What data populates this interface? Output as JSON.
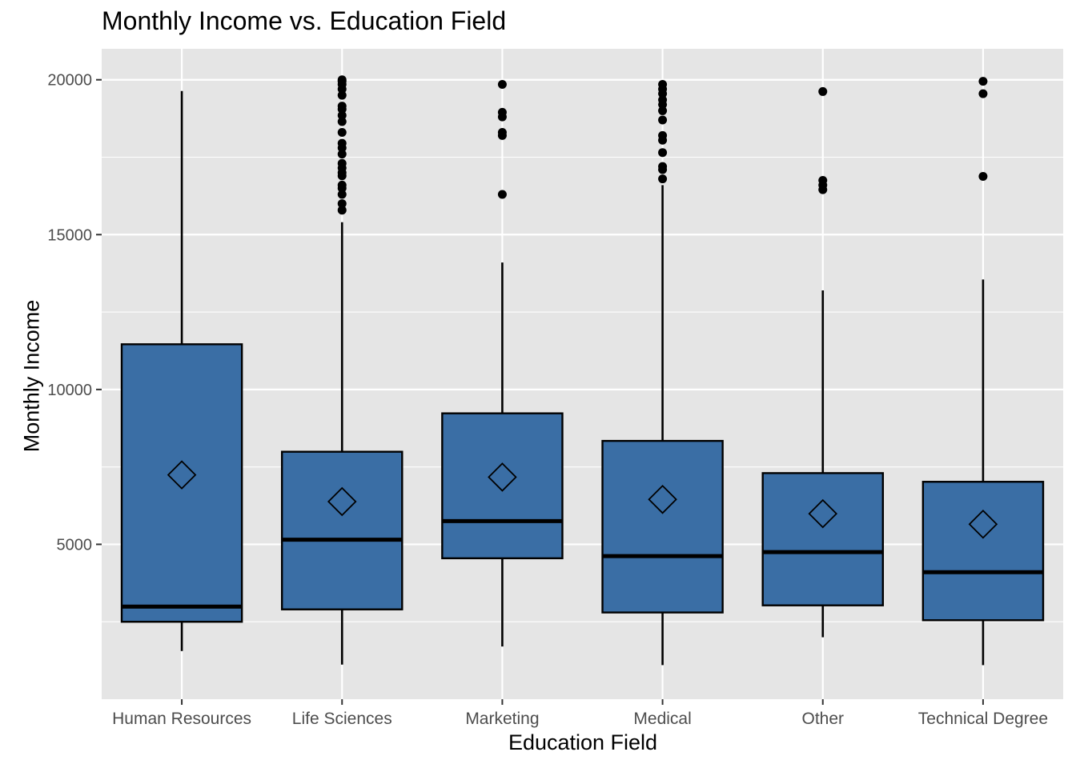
{
  "chart_data": {
    "type": "boxplot",
    "title": "Monthly Income vs. Education Field",
    "xlabel": "Education Field",
    "ylabel": "Monthly Income",
    "ylim": [
      0,
      21000
    ],
    "yticks": [
      5000,
      10000,
      15000,
      20000
    ],
    "grid": true,
    "colors": {
      "panel": "#e5e5e5",
      "grid": "#ffffff",
      "box_fill": "#3a6ea5",
      "stroke": "#000000"
    },
    "categories": [
      "Human Resources",
      "Life Sciences",
      "Marketing",
      "Medical",
      "Other",
      "Technical Degree"
    ],
    "boxes": [
      {
        "category": "Human Resources",
        "whisker_low": 1555,
        "q1": 2500,
        "median": 2990,
        "q3": 11460,
        "whisker_high": 19636,
        "mean": 7242,
        "outliers": []
      },
      {
        "category": "Life Sciences",
        "whisker_low": 1118,
        "q1": 2900,
        "median": 5150,
        "q3": 7990,
        "whisker_high": 15400,
        "mean": 6380,
        "outliers": [
          15790,
          16000,
          16300,
          16500,
          16600,
          16900,
          17000,
          17150,
          17300,
          17600,
          17800,
          17950,
          18300,
          18650,
          18850,
          19050,
          19150,
          19500,
          19700,
          19850,
          19950,
          20000
        ]
      },
      {
        "category": "Marketing",
        "whisker_low": 1700,
        "q1": 4550,
        "median": 5750,
        "q3": 9230,
        "whisker_high": 14100,
        "mean": 7170,
        "outliers": [
          16300,
          18200,
          18300,
          18800,
          18950,
          19850
        ]
      },
      {
        "category": "Medical",
        "whisker_low": 1100,
        "q1": 2800,
        "median": 4620,
        "q3": 8340,
        "whisker_high": 16600,
        "mean": 6450,
        "outliers": [
          16800,
          17100,
          17200,
          17650,
          18050,
          18200,
          18700,
          19000,
          19200,
          19350,
          19550,
          19700,
          19850
        ]
      },
      {
        "category": "Other",
        "whisker_low": 2000,
        "q1": 3030,
        "median": 4750,
        "q3": 7300,
        "whisker_high": 13200,
        "mean": 5990,
        "outliers": [
          16450,
          16600,
          16750,
          19620
        ]
      },
      {
        "category": "Technical Degree",
        "whisker_low": 1100,
        "q1": 2550,
        "median": 4100,
        "q3": 7020,
        "whisker_high": 13550,
        "mean": 5650,
        "outliers": [
          16880,
          19550,
          19950
        ]
      }
    ]
  }
}
